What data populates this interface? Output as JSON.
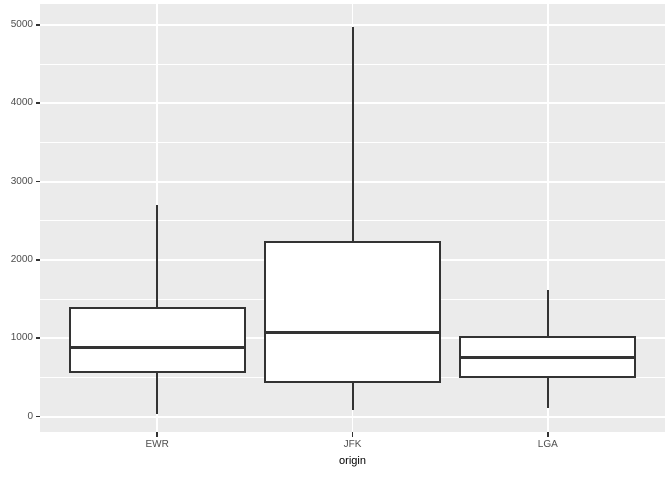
{
  "colors": {
    "figure_bg": "#FFFFFF",
    "panel_bg": "#EBEBEB",
    "grid": "#FFFFFF",
    "box_stroke": "#333333",
    "box_fill": "#FFFFFF",
    "tick_label": "#4D4D4D",
    "axis_title": "#000000"
  },
  "chart_data": {
    "type": "boxplot",
    "title": "",
    "xlabel": "origin",
    "ylabel": "",
    "categories": [
      "EWR",
      "JFK",
      "LGA"
    ],
    "series": [
      {
        "name": "EWR",
        "whisker_low": 30,
        "q1": 555,
        "median": 885,
        "q3": 1405,
        "whisker_high": 2700
      },
      {
        "name": "JFK",
        "whisker_low": 90,
        "q1": 430,
        "median": 1070,
        "q3": 2250,
        "whisker_high": 4980
      },
      {
        "name": "LGA",
        "whisker_low": 110,
        "q1": 500,
        "median": 760,
        "q3": 1030,
        "whisker_high": 1620
      }
    ],
    "yticks": [
      0,
      1000,
      2000,
      3000,
      4000,
      5000
    ],
    "ytick_labels": [
      "0",
      "1000",
      "2000",
      "3000",
      "4000",
      "5000"
    ],
    "yminor": [
      500,
      1500,
      2500,
      3500,
      4500
    ],
    "ylim": [
      -195,
      5270
    ],
    "grid": true,
    "legend": false,
    "outliers_shown": false
  }
}
